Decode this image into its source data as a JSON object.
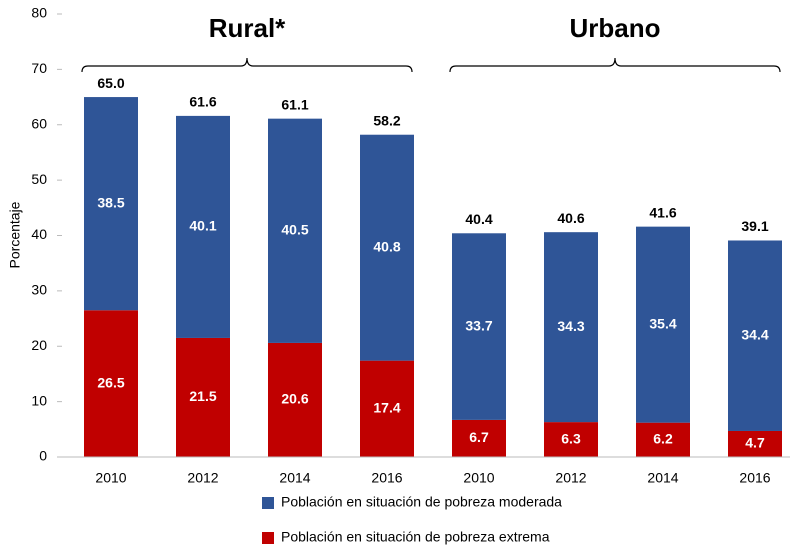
{
  "chart_data": {
    "type": "stacked-bar",
    "y_label": "Porcentaje",
    "categories": [
      "2010",
      "2012",
      "2014",
      "2016",
      "2010",
      "2012",
      "2014",
      "2016"
    ],
    "groups": [
      {
        "label": "Rural*",
        "span": [
          0,
          3
        ]
      },
      {
        "label": "Urbano",
        "span": [
          4,
          7
        ]
      }
    ],
    "series": [
      {
        "name": "Población en situación de pobreza extrema",
        "color": "#c00000",
        "values": [
          26.5,
          21.5,
          20.6,
          17.4,
          6.7,
          6.3,
          6.2,
          4.7
        ]
      },
      {
        "name": "Población en situación de pobreza moderada",
        "color": "#2f5597",
        "values": [
          38.5,
          40.1,
          40.5,
          40.8,
          33.7,
          34.3,
          35.4,
          34.4
        ]
      }
    ],
    "totals": [
      65,
      61.6,
      61.1,
      58.2,
      40.4,
      40.6,
      41.6,
      39.1
    ],
    "total_labels": [
      "65.0",
      "61.6",
      "61.1",
      "58.2",
      "40.4",
      "40.6",
      "41.6",
      "39.1"
    ],
    "ylim": [
      0,
      80
    ],
    "yticks": [
      0,
      10,
      20,
      30,
      40,
      50,
      60,
      70,
      80
    ],
    "grid": false
  }
}
